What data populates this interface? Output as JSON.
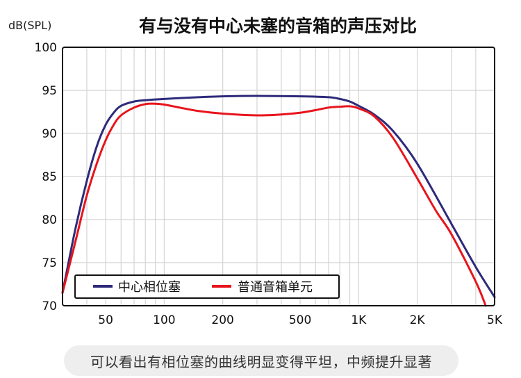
{
  "chart_data": {
    "type": "line",
    "title": "有与没有中心未塞的音箱的声压对比",
    "ylabel": "dB(SPL)",
    "xlabel": "",
    "x_scale": "log",
    "xlim": [
      30,
      5000
    ],
    "ylim": [
      70,
      100
    ],
    "x_ticks": [
      {
        "value": 50,
        "label": "50"
      },
      {
        "value": 100,
        "label": "100"
      },
      {
        "value": 200,
        "label": "200"
      },
      {
        "value": 500,
        "label": "500"
      },
      {
        "value": 1000,
        "label": "1K"
      },
      {
        "value": 2000,
        "label": "2K"
      },
      {
        "value": 5000,
        "label": "5K"
      }
    ],
    "y_ticks": [
      {
        "value": 70,
        "label": "70"
      },
      {
        "value": 75,
        "label": "75"
      },
      {
        "value": 80,
        "label": "80"
      },
      {
        "value": 85,
        "label": "85"
      },
      {
        "value": 90,
        "label": "90"
      },
      {
        "value": 95,
        "label": "95"
      },
      {
        "value": 100,
        "label": "100"
      }
    ],
    "grid": true,
    "legend_position": "bottom-left",
    "series": [
      {
        "name": "中心相位塞",
        "color": "#2e2a7a",
        "points": [
          [
            30,
            71.5
          ],
          [
            35,
            79
          ],
          [
            40,
            84.5
          ],
          [
            45,
            88.5
          ],
          [
            50,
            91
          ],
          [
            55,
            92.4
          ],
          [
            60,
            93.2
          ],
          [
            70,
            93.7
          ],
          [
            80,
            93.85
          ],
          [
            100,
            94
          ],
          [
            150,
            94.2
          ],
          [
            200,
            94.3
          ],
          [
            300,
            94.35
          ],
          [
            500,
            94.3
          ],
          [
            700,
            94.2
          ],
          [
            800,
            94.0
          ],
          [
            900,
            93.7
          ],
          [
            1000,
            93.2
          ],
          [
            1200,
            92.2
          ],
          [
            1500,
            90.3
          ],
          [
            2000,
            86.5
          ],
          [
            3000,
            79.5
          ],
          [
            4000,
            74.5
          ],
          [
            5000,
            71
          ]
        ]
      },
      {
        "name": "普通音箱单元",
        "color": "#e8141c",
        "points": [
          [
            30,
            71.5
          ],
          [
            35,
            77.5
          ],
          [
            40,
            82.8
          ],
          [
            45,
            86.5
          ],
          [
            50,
            89.2
          ],
          [
            55,
            91
          ],
          [
            60,
            92.1
          ],
          [
            70,
            93.0
          ],
          [
            80,
            93.4
          ],
          [
            90,
            93.45
          ],
          [
            100,
            93.35
          ],
          [
            120,
            93.0
          ],
          [
            150,
            92.6
          ],
          [
            200,
            92.3
          ],
          [
            300,
            92.1
          ],
          [
            400,
            92.2
          ],
          [
            500,
            92.4
          ],
          [
            600,
            92.7
          ],
          [
            700,
            93.0
          ],
          [
            800,
            93.1
          ],
          [
            900,
            93.15
          ],
          [
            1000,
            92.9
          ],
          [
            1200,
            92.0
          ],
          [
            1500,
            89.5
          ],
          [
            2000,
            84.8
          ],
          [
            2500,
            81.0
          ],
          [
            3000,
            78.3
          ],
          [
            4000,
            72.8
          ],
          [
            4500,
            70
          ]
        ]
      }
    ]
  },
  "caption": "可以看出有相位塞的曲线明显变得平坦，中频提升显著"
}
